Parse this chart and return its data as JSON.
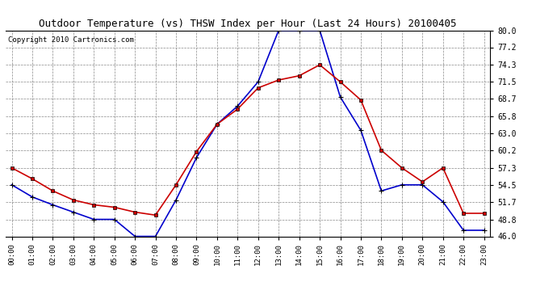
{
  "title": "Outdoor Temperature (vs) THSW Index per Hour (Last 24 Hours) 20100405",
  "copyright": "Copyright 2010 Cartronics.com",
  "hours": [
    0,
    1,
    2,
    3,
    4,
    5,
    6,
    7,
    8,
    9,
    10,
    11,
    12,
    13,
    14,
    15,
    16,
    17,
    18,
    19,
    20,
    21,
    22,
    23
  ],
  "temp": [
    57.3,
    55.5,
    53.5,
    52.0,
    51.2,
    50.8,
    50.0,
    49.5,
    54.5,
    60.0,
    64.5,
    67.0,
    70.5,
    71.8,
    72.5,
    74.3,
    71.5,
    68.5,
    60.2,
    57.3,
    55.0,
    57.3,
    49.8,
    49.8
  ],
  "thsw": [
    54.5,
    52.5,
    51.2,
    50.0,
    48.8,
    48.8,
    46.0,
    46.0,
    52.0,
    59.0,
    64.5,
    67.5,
    71.5,
    80.0,
    80.0,
    80.0,
    69.0,
    63.5,
    53.5,
    54.5,
    54.5,
    51.7,
    47.0,
    47.0
  ],
  "ylim": [
    46.0,
    80.0
  ],
  "yticks": [
    46.0,
    48.8,
    51.7,
    54.5,
    57.3,
    60.2,
    63.0,
    65.8,
    68.7,
    71.5,
    74.3,
    77.2,
    80.0
  ],
  "temp_color": "#cc0000",
  "thsw_color": "#0000cc",
  "bg_color": "#ffffff",
  "grid_color": "#888888",
  "title_fontsize": 9,
  "copyright_fontsize": 6.5
}
